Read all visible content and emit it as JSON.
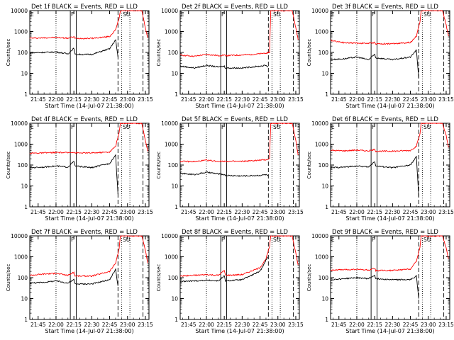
{
  "figure": {
    "colors": {
      "events": "#000000",
      "lld": "#ff0000",
      "axis": "#000000"
    },
    "flag_markers": [
      "E",
      "F",
      "SU"
    ]
  },
  "chart_data": [
    {
      "type": "line",
      "title": "Det 1f BLACK = Events, RED = LLD",
      "xlabel": "Start Time (14-Jul-07 21:38:00)",
      "ylabel": "Counts/sec",
      "x_tick_labels": [
        "21:45",
        "22:00",
        "22:15",
        "22:30",
        "22:45",
        "23:00",
        "23:15"
      ],
      "y_tick_labels": [
        "1",
        "10",
        "100",
        "1000",
        "10000"
      ],
      "ylim": [
        1,
        10000
      ],
      "y_scale": "log",
      "series": [
        {
          "name": "LLD",
          "color": "#ff0000",
          "x": [
            "21:38",
            "21:50",
            "22:00",
            "22:10",
            "22:15",
            "22:16",
            "22:30",
            "22:45",
            "22:50",
            "22:53",
            "22:54",
            "23:12",
            "23:15",
            "23:17"
          ],
          "y": [
            480,
            500,
            520,
            480,
            560,
            470,
            470,
            580,
            1200,
            4500,
            10000,
            10000,
            1500,
            500
          ]
        },
        {
          "name": "Events",
          "color": "#000000",
          "x": [
            "21:38",
            "21:50",
            "22:00",
            "22:10",
            "22:15",
            "22:16",
            "22:30",
            "22:45",
            "22:50",
            "22:52"
          ],
          "y": [
            95,
            100,
            105,
            85,
            160,
            80,
            80,
            150,
            400,
            60
          ]
        }
      ]
    },
    {
      "type": "line",
      "title": "Det 2f BLACK = Events, RED = LLD",
      "xlabel": "Start Time (14-Jul-07 21:38:00)",
      "ylabel": "Counts/sec",
      "x_tick_labels": [
        "21:45",
        "22:00",
        "22:15",
        "22:30",
        "22:45",
        "23:00",
        "23:15"
      ],
      "y_tick_labels": [
        "1",
        "10",
        "100",
        "1000",
        "10000"
      ],
      "ylim": [
        1,
        10000
      ],
      "y_scale": "log",
      "series": [
        {
          "name": "LLD",
          "color": "#ff0000",
          "x": [
            "21:38",
            "21:50",
            "22:00",
            "22:10",
            "22:15",
            "22:16",
            "22:30",
            "22:45",
            "22:50",
            "22:53",
            "22:54",
            "23:12",
            "23:15",
            "23:17"
          ],
          "y": [
            75,
            65,
            80,
            70,
            75,
            70,
            75,
            85,
            95,
            100,
            10000,
            10000,
            1500,
            400
          ]
        },
        {
          "name": "Events",
          "color": "#000000",
          "x": [
            "21:38",
            "21:50",
            "22:00",
            "22:10",
            "22:15",
            "22:16",
            "22:30",
            "22:45",
            "22:50",
            "22:52"
          ],
          "y": [
            22,
            18,
            24,
            20,
            22,
            18,
            18,
            22,
            24,
            20
          ]
        }
      ]
    },
    {
      "type": "line",
      "title": "Det 3f BLACK = Events, RED = LLD",
      "xlabel": "Start Time (14-Jul-07 21:38:00)",
      "ylabel": "Counts/sec",
      "x_tick_labels": [
        "21:45",
        "22:00",
        "22:15",
        "22:30",
        "22:45",
        "23:00",
        "23:15"
      ],
      "y_tick_labels": [
        "1",
        "10",
        "100",
        "1000",
        "10000"
      ],
      "ylim": [
        1,
        10000
      ],
      "y_scale": "log",
      "series": [
        {
          "name": "LLD",
          "color": "#ff0000",
          "x": [
            "21:38",
            "21:50",
            "22:00",
            "22:10",
            "22:15",
            "22:16",
            "22:30",
            "22:45",
            "22:50",
            "22:53",
            "22:54",
            "23:12",
            "23:15",
            "23:17"
          ],
          "y": [
            380,
            290,
            280,
            270,
            300,
            260,
            260,
            300,
            600,
            3000,
            10000,
            10000,
            2000,
            600
          ]
        },
        {
          "name": "Events",
          "color": "#000000",
          "x": [
            "21:38",
            "21:50",
            "22:00",
            "22:10",
            "22:15",
            "22:16",
            "22:30",
            "22:45",
            "22:50",
            "22:52"
          ],
          "y": [
            45,
            50,
            60,
            45,
            80,
            55,
            45,
            60,
            130,
            6
          ]
        }
      ]
    },
    {
      "type": "line",
      "title": "Det 4f BLACK = Events, RED = LLD",
      "xlabel": "Start Time (14-Jul-07 21:38:00)",
      "ylabel": "Counts/sec",
      "x_tick_labels": [
        "21:45",
        "22:00",
        "22:15",
        "22:30",
        "22:45",
        "23:00",
        "23:15"
      ],
      "y_tick_labels": [
        "1",
        "10",
        "100",
        "1000",
        "10000"
      ],
      "ylim": [
        1,
        10000
      ],
      "y_scale": "log",
      "series": [
        {
          "name": "LLD",
          "color": "#ff0000",
          "x": [
            "21:38",
            "21:50",
            "22:00",
            "22:10",
            "22:15",
            "22:16",
            "22:30",
            "22:45",
            "22:50",
            "22:53",
            "22:54",
            "23:12",
            "23:15",
            "23:17"
          ],
          "y": [
            370,
            380,
            400,
            390,
            420,
            380,
            380,
            420,
            800,
            3500,
            10000,
            10000,
            1500,
            450
          ]
        },
        {
          "name": "Events",
          "color": "#000000",
          "x": [
            "21:38",
            "21:50",
            "22:00",
            "22:10",
            "22:15",
            "22:16",
            "22:30",
            "22:45",
            "22:50",
            "22:52"
          ],
          "y": [
            75,
            80,
            90,
            80,
            150,
            90,
            75,
            120,
            300,
            4
          ]
        }
      ]
    },
    {
      "type": "line",
      "title": "Det 5f BLACK = Events, RED = LLD",
      "xlabel": "Start Time (14-Jul-07 21:38:00)",
      "ylabel": "Counts/sec",
      "x_tick_labels": [
        "21:45",
        "22:00",
        "22:15",
        "22:30",
        "22:45",
        "23:00",
        "23:15"
      ],
      "y_tick_labels": [
        "1",
        "10",
        "100",
        "1000",
        "10000"
      ],
      "ylim": [
        1,
        10000
      ],
      "y_scale": "log",
      "series": [
        {
          "name": "LLD",
          "color": "#ff0000",
          "x": [
            "21:38",
            "21:50",
            "22:00",
            "22:10",
            "22:15",
            "22:16",
            "22:30",
            "22:45",
            "22:50",
            "22:53",
            "22:54",
            "23:12",
            "23:15",
            "23:17"
          ],
          "y": [
            150,
            145,
            170,
            150,
            155,
            150,
            150,
            170,
            180,
            200,
            10000,
            10000,
            1500,
            300
          ]
        },
        {
          "name": "Events",
          "color": "#000000",
          "x": [
            "21:38",
            "21:50",
            "22:00",
            "22:10",
            "22:15",
            "22:16",
            "22:30",
            "22:45",
            "22:50",
            "22:52"
          ],
          "y": [
            40,
            35,
            45,
            38,
            35,
            32,
            30,
            32,
            35,
            30
          ]
        }
      ]
    },
    {
      "type": "line",
      "title": "Det 6f BLACK = Events, RED = LLD",
      "xlabel": "Start Time (14-Jul-07 21:38:00)",
      "ylabel": "Counts/sec",
      "x_tick_labels": [
        "21:45",
        "22:00",
        "22:15",
        "22:30",
        "22:45",
        "23:00",
        "23:15"
      ],
      "y_tick_labels": [
        "1",
        "10",
        "100",
        "1000",
        "10000"
      ],
      "ylim": [
        1,
        10000
      ],
      "y_scale": "log",
      "series": [
        {
          "name": "LLD",
          "color": "#ff0000",
          "x": [
            "21:38",
            "21:50",
            "22:00",
            "22:10",
            "22:15",
            "22:16",
            "22:30",
            "22:45",
            "22:50",
            "22:53",
            "22:54",
            "23:12",
            "23:15",
            "23:17"
          ],
          "y": [
            500,
            480,
            520,
            470,
            550,
            460,
            460,
            500,
            800,
            3000,
            10000,
            10000,
            2500,
            700
          ]
        },
        {
          "name": "Events",
          "color": "#000000",
          "x": [
            "21:38",
            "21:50",
            "22:00",
            "22:10",
            "22:15",
            "22:16",
            "22:30",
            "22:45",
            "22:50",
            "22:52"
          ],
          "y": [
            75,
            80,
            90,
            80,
            150,
            90,
            75,
            100,
            250,
            3
          ]
        }
      ]
    },
    {
      "type": "line",
      "title": "Det 7f BLACK = Events, RED = LLD",
      "xlabel": "Start Time (14-Jul-07 21:38:00)",
      "ylabel": "Counts/sec",
      "x_tick_labels": [
        "21:45",
        "22:00",
        "22:15",
        "22:30",
        "22:45",
        "23:00",
        "23:15"
      ],
      "y_tick_labels": [
        "1",
        "10",
        "100",
        "1000",
        "10000"
      ],
      "ylim": [
        1,
        10000
      ],
      "y_scale": "log",
      "series": [
        {
          "name": "LLD",
          "color": "#ff0000",
          "x": [
            "21:38",
            "21:50",
            "22:00",
            "22:10",
            "22:15",
            "22:16",
            "22:30",
            "22:45",
            "22:50",
            "22:53",
            "22:54",
            "23:12",
            "23:15",
            "23:17"
          ],
          "y": [
            130,
            150,
            160,
            130,
            180,
            120,
            120,
            200,
            500,
            2500,
            10000,
            10000,
            2000,
            500
          ]
        },
        {
          "name": "Events",
          "color": "#000000",
          "x": [
            "21:38",
            "21:50",
            "22:00",
            "22:10",
            "22:15",
            "22:16",
            "22:30",
            "22:45",
            "22:50",
            "22:52"
          ],
          "y": [
            55,
            60,
            70,
            55,
            80,
            50,
            50,
            80,
            250,
            40
          ]
        }
      ]
    },
    {
      "type": "line",
      "title": "Det 8f BLACK = Events, RED = LLD",
      "xlabel": "Start Time (14-Jul-07 21:38:00)",
      "ylabel": "Counts/sec",
      "x_tick_labels": [
        "21:45",
        "22:00",
        "22:15",
        "22:30",
        "22:45",
        "23:00",
        "23:15"
      ],
      "y_tick_labels": [
        "1",
        "10",
        "100",
        "1000",
        "10000"
      ],
      "ylim": [
        1,
        10000
      ],
      "y_scale": "log",
      "series": [
        {
          "name": "LLD",
          "color": "#ff0000",
          "x": [
            "21:38",
            "21:50",
            "22:00",
            "22:10",
            "22:15",
            "22:16",
            "22:30",
            "22:45",
            "22:50",
            "22:53",
            "22:54",
            "23:12",
            "23:15",
            "23:17"
          ],
          "y": [
            120,
            130,
            140,
            130,
            220,
            130,
            140,
            300,
            800,
            3000,
            10000,
            10000,
            1500,
            400
          ]
        },
        {
          "name": "Events",
          "color": "#000000",
          "x": [
            "21:38",
            "21:50",
            "22:00",
            "22:10",
            "22:15",
            "22:16",
            "22:30",
            "22:45",
            "22:50",
            "22:52"
          ],
          "y": [
            65,
            70,
            75,
            70,
            120,
            70,
            80,
            200,
            700,
            1000
          ]
        }
      ]
    },
    {
      "type": "line",
      "title": "Det 9f BLACK = Events, RED = LLD",
      "xlabel": "Start Time (14-Jul-07 21:38:00)",
      "ylabel": "Counts/sec",
      "x_tick_labels": [
        "21:45",
        "22:00",
        "22:15",
        "22:30",
        "22:45",
        "23:00",
        "23:15"
      ],
      "y_tick_labels": [
        "1",
        "10",
        "100",
        "1000",
        "10000"
      ],
      "ylim": [
        1,
        10000
      ],
      "y_scale": "log",
      "series": [
        {
          "name": "LLD",
          "color": "#ff0000",
          "x": [
            "21:38",
            "21:50",
            "22:00",
            "22:10",
            "22:15",
            "22:16",
            "22:30",
            "22:45",
            "22:50",
            "22:53",
            "22:54",
            "23:12",
            "23:15",
            "23:17"
          ],
          "y": [
            230,
            240,
            250,
            230,
            270,
            220,
            220,
            260,
            600,
            3000,
            10000,
            10000,
            2500,
            800
          ]
        },
        {
          "name": "Events",
          "color": "#000000",
          "x": [
            "21:38",
            "21:50",
            "22:00",
            "22:10",
            "22:15",
            "22:16",
            "22:30",
            "22:45",
            "22:50",
            "22:52"
          ],
          "y": [
            80,
            90,
            100,
            90,
            130,
            90,
            80,
            80,
            120,
            10
          ]
        }
      ]
    }
  ]
}
